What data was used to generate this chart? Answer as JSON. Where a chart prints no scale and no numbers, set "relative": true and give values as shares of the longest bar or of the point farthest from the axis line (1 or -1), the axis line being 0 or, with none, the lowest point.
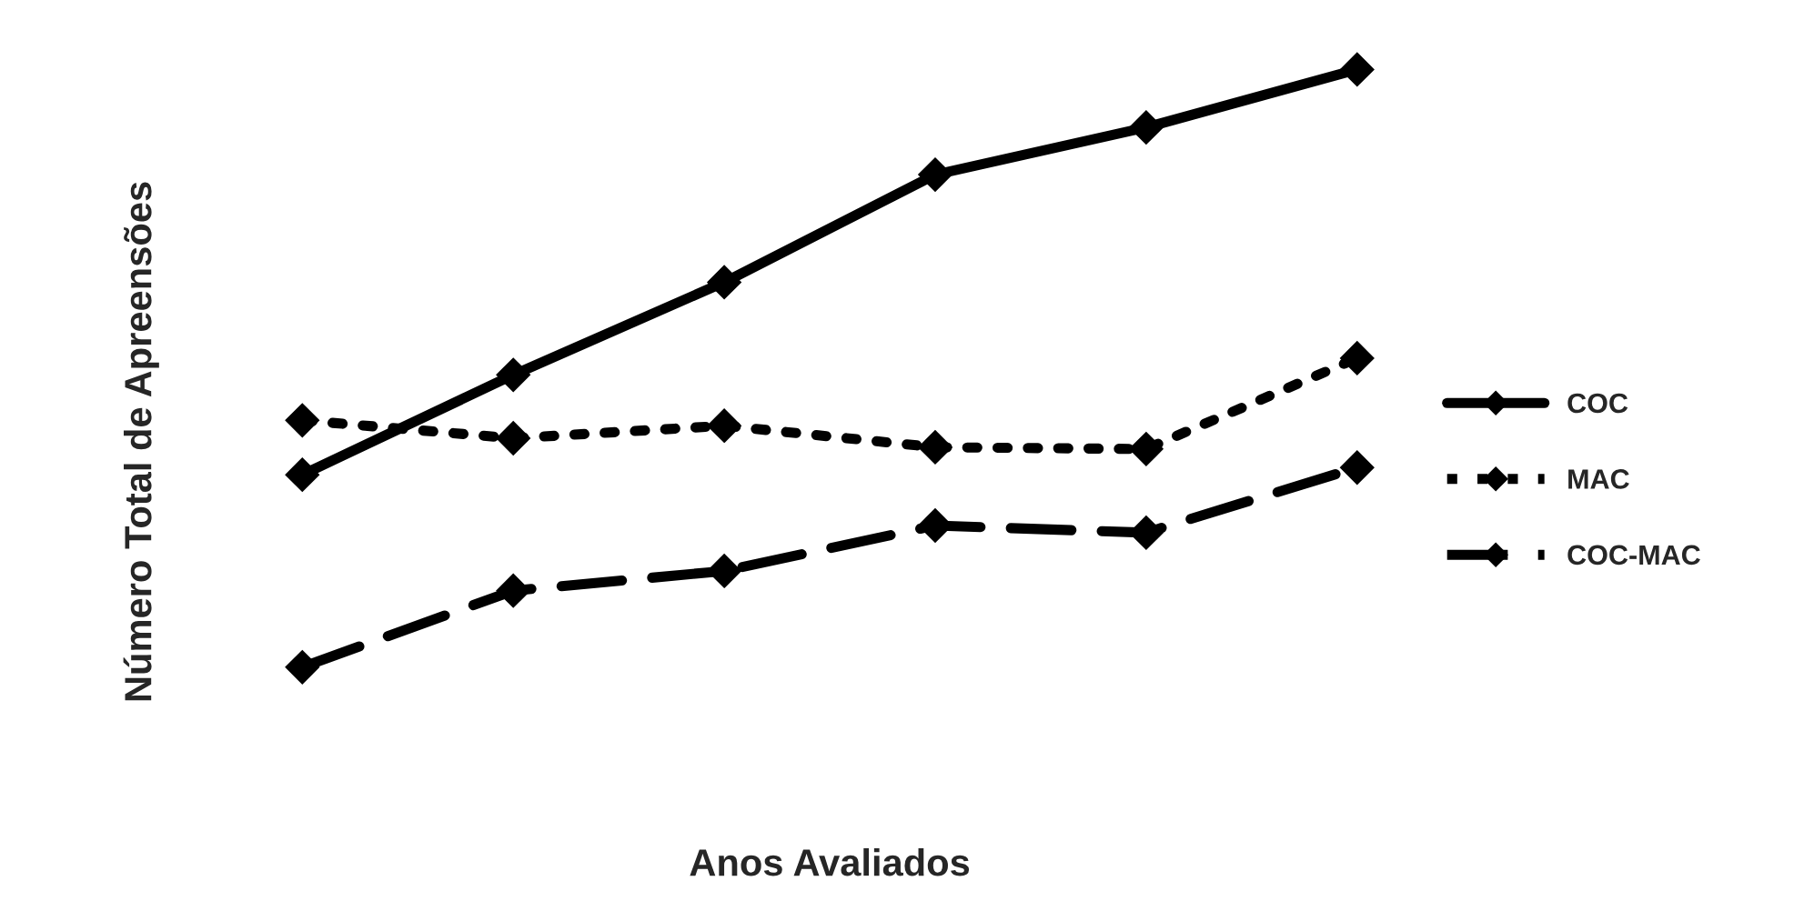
{
  "chart_data": {
    "type": "line",
    "xlabel": "Anos Avaliados",
    "ylabel": "Número Total de Apreensões",
    "categories": [
      null,
      null,
      null,
      null,
      null,
      null
    ],
    "relative": true,
    "marker": "diamond",
    "legend": "right",
    "grid": false,
    "tick_labels": false,
    "series": [
      {
        "name": "COC",
        "color": "#000000",
        "line_style": "solid",
        "values": [
          0.322,
          0.489,
          0.644,
          0.824,
          0.903,
          1.0
        ]
      },
      {
        "name": "MAC",
        "color": "#000000",
        "line_style": "dotted",
        "values": [
          0.413,
          0.383,
          0.404,
          0.368,
          0.365,
          0.517
        ]
      },
      {
        "name": "COC-MAC",
        "color": "#000000",
        "line_style": "dashed",
        "values": [
          0.0,
          0.128,
          0.161,
          0.237,
          0.225,
          0.334
        ]
      }
    ]
  }
}
